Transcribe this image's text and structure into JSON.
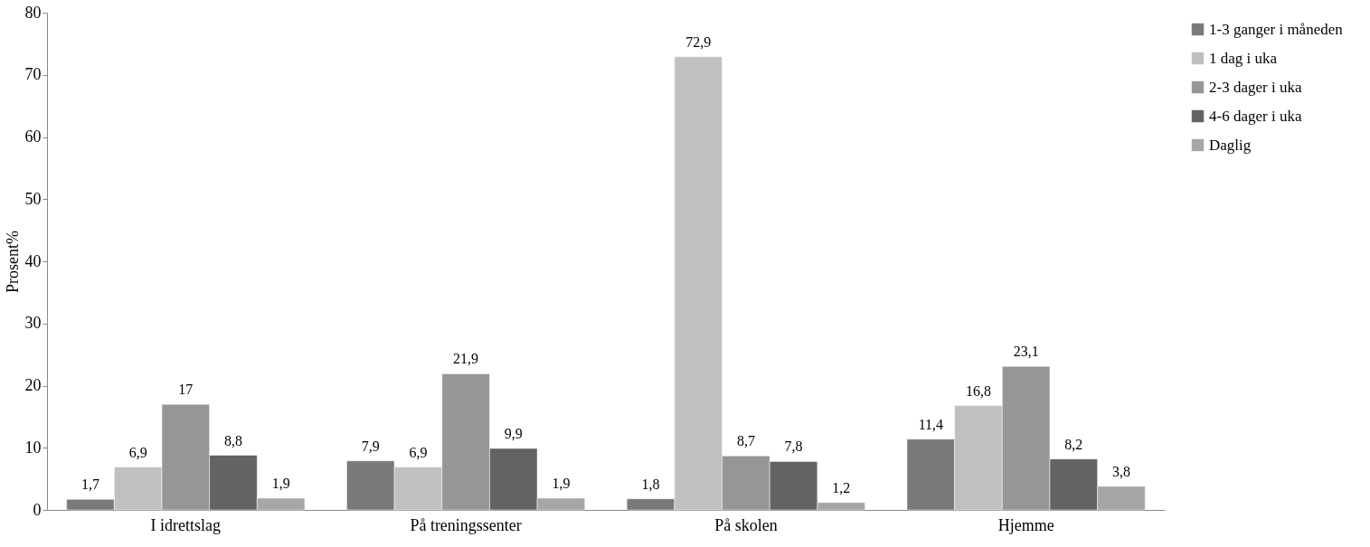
{
  "chart_data": {
    "type": "bar",
    "ylabel": "Prosent%",
    "categories": [
      "I idrettslag",
      "På treningssenter",
      "På skolen",
      "Hjemme"
    ],
    "series": [
      {
        "name": "1-3 ganger i måneden",
        "color": "#7a7a7a",
        "values": [
          1.7,
          7.9,
          1.8,
          11.4
        ],
        "value_labels": [
          "1,7",
          "7,9",
          "1,8",
          "11,4"
        ]
      },
      {
        "name": "1 dag i uka",
        "color": "#c0c0c0",
        "values": [
          6.9,
          6.9,
          72.9,
          16.8
        ],
        "value_labels": [
          "6,9",
          "6,9",
          "72,9",
          "16,8"
        ]
      },
      {
        "name": "2-3 dager i uka",
        "color": "#969696",
        "values": [
          17,
          21.9,
          8.7,
          23.1
        ],
        "value_labels": [
          "17",
          "21,9",
          "8,7",
          "23,1"
        ]
      },
      {
        "name": "4-6 dager i uka",
        "color": "#636363",
        "values": [
          8.8,
          9.9,
          7.8,
          8.2
        ],
        "value_labels": [
          "8,8",
          "9,9",
          "7,8",
          "8,2"
        ]
      },
      {
        "name": "Daglig",
        "color": "#a6a6a6",
        "values": [
          1.9,
          1.9,
          1.2,
          3.8
        ],
        "value_labels": [
          "1,9",
          "1,9",
          "1,2",
          "3,8"
        ]
      }
    ],
    "ylim": [
      0,
      80
    ],
    "yticks": [
      0,
      10,
      20,
      30,
      40,
      50,
      60,
      70,
      80
    ],
    "grid": false,
    "legend": "right"
  }
}
